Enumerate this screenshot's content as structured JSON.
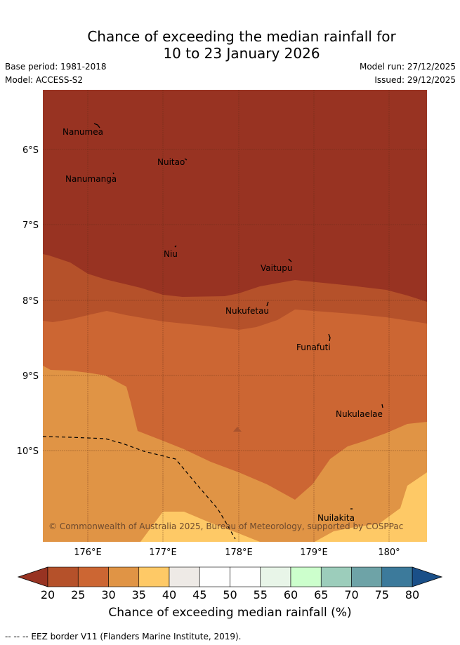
{
  "header": {
    "title_line1": "Chance of exceeding the median rainfall for",
    "title_line2": "10 to 23 January 2026",
    "base_period": "Base period: 1981-2018",
    "model": "Model: ACCESS-S2",
    "model_run": "Model run: 27/12/2025",
    "issued": "Issued: 29/12/2025"
  },
  "map": {
    "lat_labels": [
      "6°S",
      "7°S",
      "8°S",
      "9°S",
      "10°S"
    ],
    "lon_labels": [
      "176°E",
      "177°E",
      "178°E",
      "179°E",
      "180°"
    ],
    "places": [
      "Nanumea",
      "Nuitao",
      "Nanumanga",
      "Niu",
      "Vaitupu",
      "Nukufetau",
      "Funafuti",
      "Nukulaelae",
      "Nuilakita"
    ],
    "copyright": "© Commonwealth of Australia 2025, Bureau of Meteorology, supported by COSPPac"
  },
  "colorbar": {
    "labels": [
      "20",
      "25",
      "30",
      "35",
      "40",
      "45",
      "50",
      "55",
      "60",
      "65",
      "70",
      "75",
      "80"
    ],
    "colors": [
      "#b5512a",
      "#cc6633",
      "#e09445",
      "#fec966",
      "#eeeae6",
      "#ffffff",
      "#ffffff",
      "#e8f5e8",
      "#ccffcc",
      "#9ccdbb",
      "#6ea3a7",
      "#3c7a9b"
    ],
    "under_color": "#983322",
    "over_color": "#1a4f88",
    "title": "Chance of exceeding median rainfall (%)"
  },
  "footer": {
    "legend_text": "-- -- -- EEZ border V11 (Flanders Marine Institute, 2019)."
  }
}
